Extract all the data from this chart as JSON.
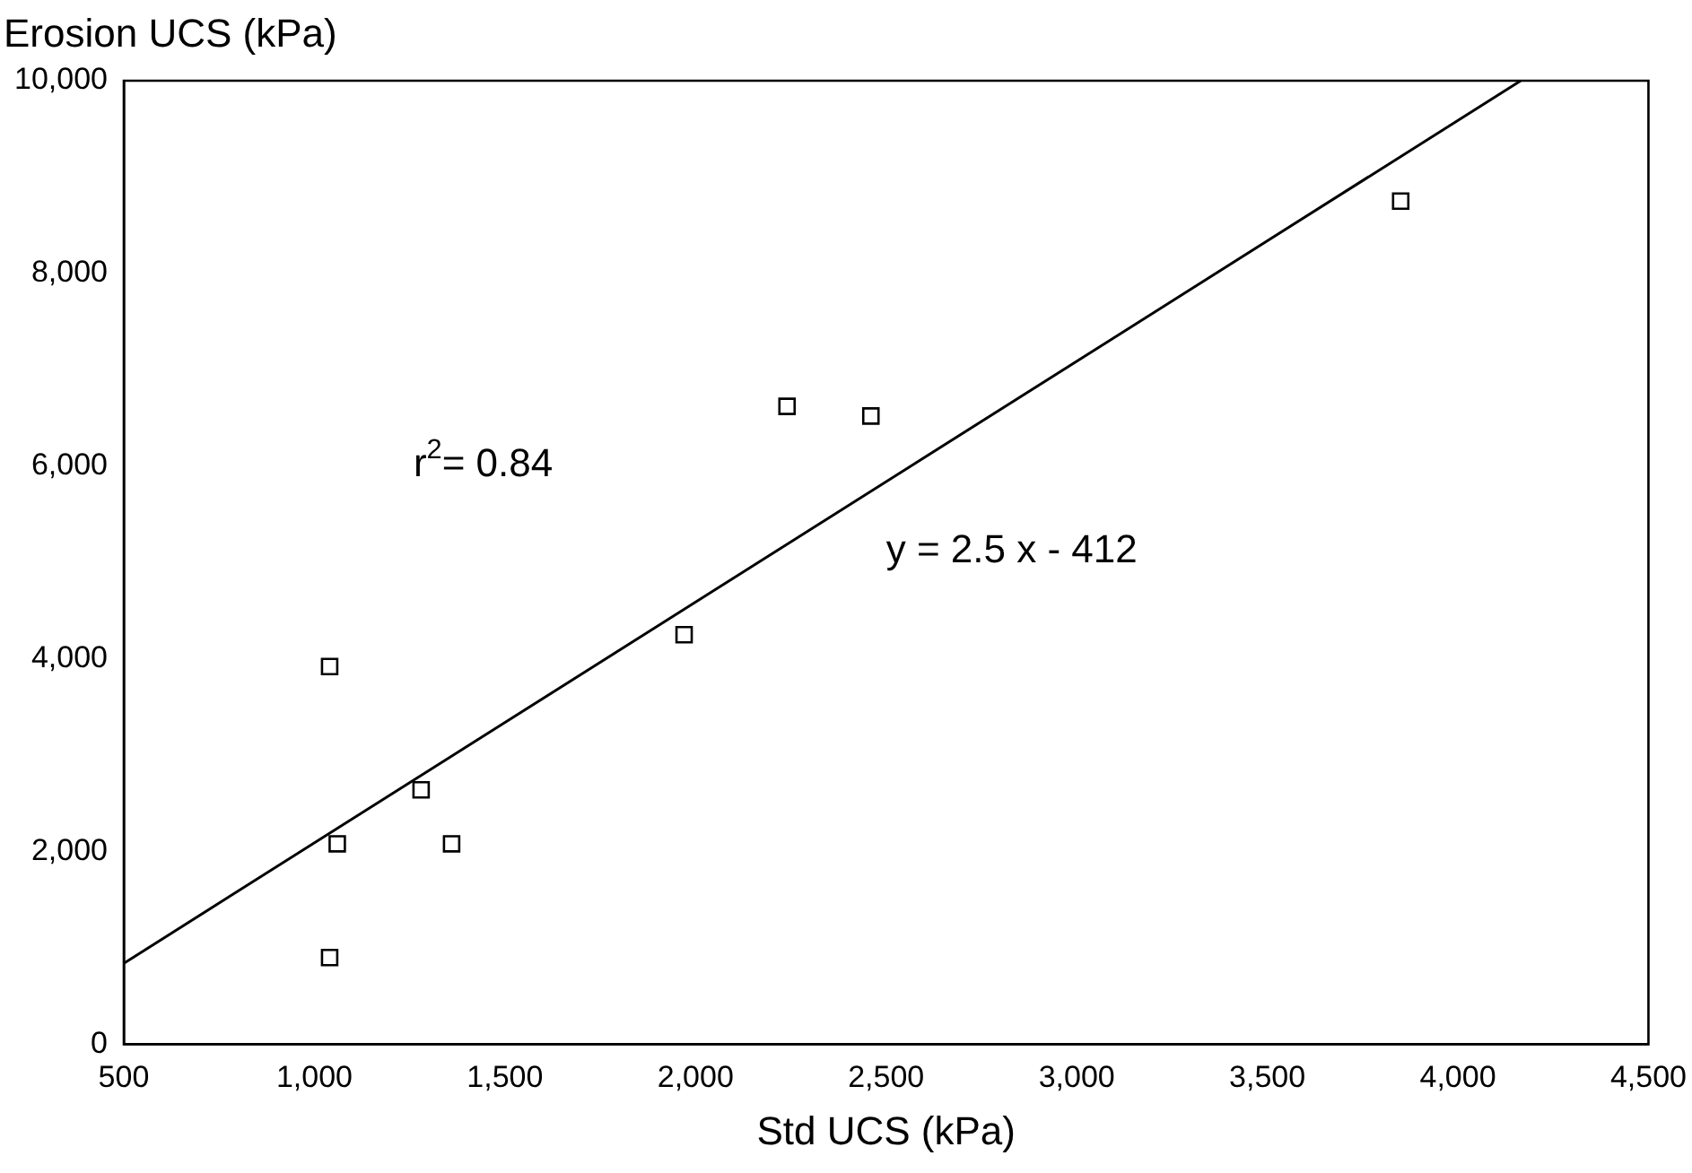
{
  "chart_data": {
    "type": "scatter",
    "xlabel": "Std UCS (kPa)",
    "ylabel": "Erosion UCS (kPa)",
    "xlim": [
      500,
      4500
    ],
    "xticks": [
      {
        "value": 500,
        "label": "500"
      },
      {
        "value": 1000,
        "label": "1,000"
      },
      {
        "value": 1500,
        "label": "1,500"
      },
      {
        "value": 2000,
        "label": "2,000"
      },
      {
        "value": 2500,
        "label": "2,500"
      },
      {
        "value": 3000,
        "label": "3,000"
      },
      {
        "value": 3500,
        "label": "3,500"
      },
      {
        "value": 4000,
        "label": "4,000"
      },
      {
        "value": 4500,
        "label": "4,500"
      }
    ],
    "ylim": [
      0,
      10000
    ],
    "yticks": [
      {
        "value": 0,
        "label": "0"
      },
      {
        "value": 2000,
        "label": "2,000"
      },
      {
        "value": 4000,
        "label": "4,000"
      },
      {
        "value": 6000,
        "label": "6,000"
      },
      {
        "value": 8000,
        "label": "8,000"
      },
      {
        "value": 10000,
        "label": "10,000"
      }
    ],
    "series": [
      {
        "color": "#000000",
        "marker": "square",
        "x": [
          1040,
          1040,
          1060,
          1280,
          1360,
          1970,
          2240,
          2460,
          3850
        ],
        "values": [
          900,
          3920,
          2080,
          2640,
          2080,
          4250,
          6620,
          6520,
          8750
        ]
      },
      {
        "type": "line",
        "color": "#000000",
        "marker": "none",
        "line_style": "solid",
        "x": [
          500,
          4165
        ],
        "values": [
          840,
          10000
        ]
      }
    ],
    "annotations": [
      "r$^{2}$= 0.84",
      "y = 2.5 x - 412"
    ],
    "grid": false,
    "legend": false
  }
}
